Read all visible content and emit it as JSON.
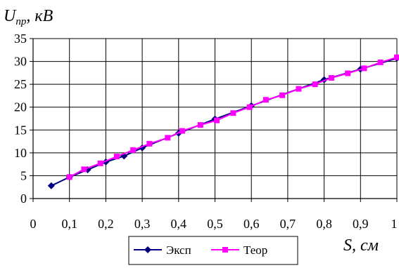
{
  "chart_data": {
    "type": "line",
    "title": "",
    "ylabel": "U_пр, кВ",
    "ylabel_main": "U",
    "ylabel_sub": "пр",
    "ylabel_unit": ", кВ",
    "xlabel": "S, см",
    "xlim": [
      0,
      1
    ],
    "ylim": [
      0,
      35
    ],
    "x_ticks": [
      "0",
      "0,1",
      "0,2",
      "0,3",
      "0,4",
      "0,5",
      "0,6",
      "0,7",
      "0,8",
      "0,9",
      "1"
    ],
    "y_ticks": [
      "0",
      "5",
      "10",
      "15",
      "20",
      "25",
      "30",
      "35"
    ],
    "grid": true,
    "legend_position": "bottom-center",
    "series": [
      {
        "name": "Эксп",
        "color": "#000080",
        "marker": "diamond",
        "points": [
          [
            0.05,
            2.8
          ],
          [
            0.1,
            4.7
          ],
          [
            0.15,
            6.3
          ],
          [
            0.2,
            8.0
          ],
          [
            0.25,
            9.3
          ],
          [
            0.3,
            11.1
          ],
          [
            0.4,
            14.3
          ],
          [
            0.5,
            17.4
          ],
          [
            0.6,
            20.3
          ],
          [
            0.8,
            26.0
          ],
          [
            0.9,
            28.3
          ],
          [
            1.0,
            30.7
          ]
        ]
      },
      {
        "name": "Теор",
        "color": "#ff00ff",
        "marker": "square",
        "points": [
          [
            0.1,
            4.7
          ],
          [
            0.14,
            6.4
          ],
          [
            0.185,
            7.7
          ],
          [
            0.23,
            9.2
          ],
          [
            0.275,
            10.6
          ],
          [
            0.32,
            12.0
          ],
          [
            0.37,
            13.3
          ],
          [
            0.41,
            14.8
          ],
          [
            0.46,
            16.1
          ],
          [
            0.505,
            17.1
          ],
          [
            0.55,
            18.7
          ],
          [
            0.595,
            20.0
          ],
          [
            0.64,
            21.6
          ],
          [
            0.685,
            22.6
          ],
          [
            0.73,
            24.0
          ],
          [
            0.775,
            25.0
          ],
          [
            0.82,
            26.4
          ],
          [
            0.865,
            27.4
          ],
          [
            0.91,
            28.5
          ],
          [
            0.955,
            29.8
          ],
          [
            1.0,
            30.9
          ]
        ]
      }
    ]
  }
}
